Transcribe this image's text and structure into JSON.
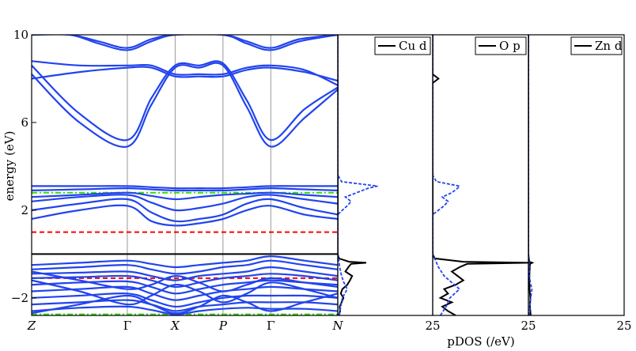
{
  "chart_data": [
    {
      "type": "line",
      "panel": "band-structure",
      "ylabel": "energy (eV)",
      "ylim": [
        -2.8,
        10
      ],
      "yticks": [
        -2,
        2,
        6,
        10
      ],
      "ytick_labels": [
        "−2",
        "2",
        "6",
        "10"
      ],
      "kpoints": [
        "Z",
        "Γ",
        "X",
        "P",
        "Γ",
        "N"
      ],
      "kpoint_positions": [
        0,
        1,
        1.5,
        2,
        2.5,
        3.2
      ],
      "reference_lines": [
        {
          "value": 0,
          "style": "solid",
          "color": "#000000"
        },
        {
          "value": 1.0,
          "style": "dashed",
          "color": "#ff0000"
        },
        {
          "value": -1.1,
          "style": "dashed",
          "color": "#ff0000"
        },
        {
          "value": 2.8,
          "style": "dashdot",
          "color": "#33dd00"
        },
        {
          "value": -2.75,
          "style": "dashdot",
          "color": "#33dd00"
        }
      ],
      "band_color": "#2244ee",
      "bands": [
        {
          "group": "upper",
          "x": [
            0,
            0.5,
            1,
            1.25,
            1.5,
            1.75,
            2,
            2.25,
            2.5,
            2.85,
            3.2
          ],
          "y": [
            8.2,
            6.0,
            4.9,
            6.8,
            8.5,
            8.5,
            8.6,
            6.7,
            4.9,
            6.2,
            7.5
          ]
        },
        {
          "group": "upper",
          "x": [
            0,
            0.5,
            1,
            1.25,
            1.5,
            1.75,
            2,
            2.25,
            2.5,
            2.85,
            3.2
          ],
          "y": [
            8.6,
            6.4,
            5.2,
            7.1,
            8.6,
            8.6,
            8.7,
            7.0,
            5.2,
            6.6,
            7.6
          ]
        },
        {
          "group": "upper",
          "x": [
            0,
            0.5,
            1,
            1.25,
            1.5,
            1.75,
            2,
            2.25,
            2.5,
            2.85,
            3.2
          ],
          "y": [
            8.0,
            8.3,
            8.5,
            8.5,
            8.1,
            8.1,
            8.1,
            8.4,
            8.5,
            8.3,
            7.9
          ]
        },
        {
          "group": "upper",
          "x": [
            0,
            0.5,
            1,
            1.25,
            1.5,
            1.75,
            2,
            2.25,
            2.5,
            2.85,
            3.2
          ],
          "y": [
            8.8,
            8.6,
            8.6,
            8.6,
            8.2,
            8.2,
            8.2,
            8.5,
            8.6,
            8.4,
            7.7
          ]
        },
        {
          "group": "upper",
          "x": [
            0,
            0.4,
            0.7,
            1,
            1.25,
            1.5,
            2,
            2.25,
            2.5,
            2.8,
            3.2
          ],
          "y": [
            10,
            10,
            9.6,
            9.3,
            9.7,
            10,
            10,
            9.6,
            9.3,
            9.7,
            10
          ]
        },
        {
          "group": "upper",
          "x": [
            0,
            0.4,
            0.7,
            1,
            1.25,
            1.5,
            2,
            2.25,
            2.5,
            2.8,
            3.2
          ],
          "y": [
            10,
            10,
            9.7,
            9.4,
            9.8,
            10,
            10,
            9.7,
            9.4,
            9.8,
            10
          ]
        },
        {
          "group": "mid",
          "x": [
            0,
            0.5,
            1,
            1.25,
            1.5,
            1.75,
            2,
            2.25,
            2.5,
            2.85,
            3.2
          ],
          "y": [
            3.1,
            3.1,
            3.1,
            3.05,
            3.0,
            3.0,
            3.0,
            3.05,
            3.1,
            3.1,
            3.1
          ]
        },
        {
          "group": "mid",
          "x": [
            0,
            0.5,
            1,
            1.25,
            1.5,
            1.75,
            2,
            2.25,
            2.5,
            2.85,
            3.2
          ],
          "y": [
            2.9,
            2.95,
            3.0,
            2.95,
            2.9,
            2.9,
            2.9,
            2.95,
            3.0,
            2.95,
            2.9
          ]
        },
        {
          "group": "mid",
          "x": [
            0,
            0.5,
            1,
            1.25,
            1.5,
            1.75,
            2,
            2.25,
            2.5,
            2.85,
            3.2
          ],
          "y": [
            2.6,
            2.7,
            2.8,
            2.65,
            2.5,
            2.6,
            2.7,
            2.75,
            2.8,
            2.7,
            2.6
          ]
        },
        {
          "group": "mid",
          "x": [
            0,
            0.5,
            1,
            1.25,
            1.5,
            1.75,
            2,
            2.25,
            2.5,
            2.85,
            3.2
          ],
          "y": [
            2.4,
            2.6,
            2.7,
            2.35,
            2.0,
            2.1,
            2.3,
            2.6,
            2.7,
            2.5,
            2.3
          ]
        },
        {
          "group": "mid",
          "x": [
            0,
            0.5,
            1,
            1.25,
            1.5,
            1.75,
            2,
            2.25,
            2.5,
            2.85,
            3.2
          ],
          "y": [
            2.0,
            2.3,
            2.5,
            1.9,
            1.5,
            1.6,
            1.8,
            2.3,
            2.5,
            2.1,
            1.8
          ]
        },
        {
          "group": "mid",
          "x": [
            0,
            0.5,
            1,
            1.25,
            1.5,
            1.75,
            2,
            2.25,
            2.5,
            2.85,
            3.2
          ],
          "y": [
            1.6,
            2.0,
            2.2,
            1.5,
            1.3,
            1.4,
            1.6,
            2.0,
            2.2,
            1.8,
            1.6
          ]
        },
        {
          "group": "valence",
          "x": [
            0,
            0.5,
            1,
            1.25,
            1.5,
            1.75,
            2,
            2.25,
            2.5,
            2.85,
            3.2
          ],
          "y": [
            -0.5,
            -0.4,
            -0.3,
            -0.45,
            -0.6,
            -0.5,
            -0.4,
            -0.3,
            -0.1,
            -0.3,
            -0.5
          ]
        },
        {
          "group": "valence",
          "x": [
            0,
            0.5,
            1,
            1.25,
            1.5,
            1.75,
            2,
            2.25,
            2.5,
            2.85,
            3.2
          ],
          "y": [
            -0.7,
            -0.6,
            -0.5,
            -0.7,
            -0.9,
            -0.8,
            -0.6,
            -0.5,
            -0.3,
            -0.5,
            -0.7
          ]
        },
        {
          "group": "valence",
          "x": [
            0,
            0.5,
            1,
            1.25,
            1.5,
            1.75,
            2,
            2.25,
            2.5,
            2.85,
            3.2
          ],
          "y": [
            -0.9,
            -0.85,
            -0.8,
            -1.0,
            -1.2,
            -1.0,
            -0.9,
            -0.8,
            -0.6,
            -0.8,
            -1.0
          ]
        },
        {
          "group": "valence",
          "x": [
            0,
            0.5,
            1,
            1.25,
            1.5,
            1.75,
            2,
            2.25,
            2.5,
            2.85,
            3.2
          ],
          "y": [
            -1.1,
            -1.05,
            -1.0,
            -1.2,
            -1.5,
            -1.3,
            -1.1,
            -1.0,
            -0.9,
            -1.0,
            -1.2
          ]
        },
        {
          "group": "valence",
          "x": [
            0,
            0.5,
            1,
            1.25,
            1.5,
            1.75,
            2,
            2.25,
            2.5,
            2.85,
            3.2
          ],
          "y": [
            -1.4,
            -1.3,
            -1.25,
            -1.5,
            -1.8,
            -1.6,
            -1.4,
            -1.3,
            -1.2,
            -1.3,
            -1.4
          ]
        },
        {
          "group": "valence",
          "x": [
            0,
            0.5,
            1,
            1.25,
            1.5,
            1.75,
            2,
            2.25,
            2.5,
            2.85,
            3.2
          ],
          "y": [
            -1.7,
            -1.6,
            -1.5,
            -1.8,
            -2.1,
            -1.9,
            -1.7,
            -1.6,
            -1.5,
            -1.6,
            -1.7
          ]
        },
        {
          "group": "valence",
          "x": [
            0,
            0.5,
            1,
            1.25,
            1.5,
            1.75,
            2,
            2.25,
            2.5,
            2.85,
            3.2
          ],
          "y": [
            -2.0,
            -1.9,
            -1.8,
            -2.1,
            -2.4,
            -2.2,
            -2.0,
            -1.9,
            -1.9,
            -1.9,
            -2.0
          ]
        },
        {
          "group": "valence",
          "x": [
            0,
            0.5,
            1,
            1.25,
            1.5,
            1.75,
            2,
            2.25,
            2.5,
            2.85,
            3.2
          ],
          "y": [
            -2.3,
            -2.2,
            -2.1,
            -2.3,
            -2.6,
            -2.4,
            -2.3,
            -2.2,
            -2.2,
            -2.2,
            -2.3
          ]
        },
        {
          "group": "valence",
          "x": [
            0,
            0.5,
            1,
            1.25,
            1.5,
            1.75,
            2,
            2.25,
            2.5,
            2.85,
            3.2
          ],
          "y": [
            -2.6,
            -2.45,
            -2.4,
            -2.55,
            -2.75,
            -2.6,
            -2.5,
            -2.45,
            -2.5,
            -2.5,
            -2.6
          ]
        },
        {
          "group": "valence",
          "x": [
            0,
            0.5,
            1,
            1.25,
            1.5,
            1.75,
            2,
            2.25,
            2.5,
            2.85,
            3.2
          ],
          "y": [
            -1.2,
            -1.7,
            -2.3,
            -1.9,
            -1.4,
            -1.7,
            -2.2,
            -1.8,
            -1.3,
            -1.6,
            -2.0
          ]
        },
        {
          "group": "valence",
          "x": [
            0,
            0.5,
            1,
            1.25,
            1.5,
            1.75,
            2,
            2.25,
            2.5,
            2.85,
            3.2
          ],
          "y": [
            -2.7,
            -2.3,
            -1.9,
            -2.3,
            -2.7,
            -2.4,
            -1.9,
            -2.2,
            -2.6,
            -2.2,
            -1.8
          ]
        },
        {
          "group": "valence",
          "x": [
            0,
            0.5,
            1,
            1.25,
            1.5,
            1.75,
            2,
            2.25,
            2.5,
            2.85,
            3.2
          ],
          "y": [
            -0.8,
            -1.2,
            -1.6,
            -1.4,
            -1.0,
            -1.3,
            -1.7,
            -1.4,
            -1.1,
            -1.3,
            -1.5
          ]
        }
      ]
    },
    {
      "type": "line",
      "panel": "pdos-cu-d",
      "legend": "Cu d",
      "legend_position": "top-right",
      "xlim": [
        0,
        25
      ],
      "ylim": [
        -2.8,
        10
      ],
      "xtick_labels": [
        "25"
      ],
      "series": [
        {
          "name": "Cu d",
          "style": "solid",
          "color": "#000000",
          "energy": [
            -2.8,
            -2.6,
            -2.4,
            -2.2,
            -2.0,
            -1.8,
            -1.6,
            -1.4,
            -1.2,
            -1.0,
            -0.8,
            -0.6,
            -0.45,
            -0.4,
            -0.35,
            -0.2,
            0.0,
            10
          ],
          "dos": [
            0.3,
            0.6,
            0.5,
            1.0,
            1.5,
            0.8,
            1.2,
            2.5,
            3.2,
            3.8,
            2.0,
            2.8,
            3.5,
            7.5,
            3.0,
            0.3,
            0,
            0
          ]
        },
        {
          "style": "dashed",
          "color": "#2244ee",
          "energy": [
            -2.8,
            -2.4,
            -2.0,
            -1.6,
            -1.3,
            -1.0,
            -0.6,
            -0.2,
            0.0,
            1.8,
            2.0,
            2.2,
            2.4,
            2.6,
            2.8,
            3.0,
            3.1,
            3.3,
            3.6,
            10
          ],
          "dos": [
            0.4,
            0.8,
            1.2,
            2.5,
            1.6,
            1.0,
            0.5,
            0.2,
            0,
            0,
            1.2,
            2.5,
            3.5,
            2.0,
            5.0,
            8.0,
            10.5,
            1.0,
            0,
            0
          ]
        }
      ]
    },
    {
      "type": "line",
      "panel": "pdos-o-p",
      "legend": "O p",
      "legend_position": "top-right",
      "xlim": [
        0,
        25
      ],
      "ylim": [
        -2.8,
        10
      ],
      "xtick_labels": [
        "25"
      ],
      "series": [
        {
          "name": "O p",
          "style": "solid",
          "color": "#000000",
          "energy": [
            -2.8,
            -2.6,
            -2.4,
            -2.2,
            -2.0,
            -1.8,
            -1.6,
            -1.4,
            -1.2,
            -1.0,
            -0.8,
            -0.6,
            -0.45,
            -0.4,
            -0.35,
            -0.2,
            0.0,
            7.8,
            8.0,
            8.2,
            10
          ],
          "dos": [
            6.0,
            4.0,
            2.5,
            5.0,
            2.0,
            4.0,
            3.0,
            6.0,
            8.0,
            6.5,
            5.0,
            7.0,
            9.0,
            25,
            8.0,
            0.5,
            0,
            0,
            1.5,
            0,
            0
          ]
        },
        {
          "style": "dashed",
          "color": "#2244ee",
          "energy": [
            -2.8,
            -2.4,
            -2.0,
            -1.6,
            -1.3,
            -1.0,
            -0.6,
            -0.2,
            0.0,
            1.8,
            2.0,
            2.2,
            2.4,
            2.6,
            2.8,
            3.0,
            3.1,
            3.3,
            3.6,
            10
          ],
          "dos": [
            2.0,
            3.5,
            4.5,
            7.0,
            5.0,
            3.0,
            1.5,
            0.5,
            0,
            0,
            1.5,
            3.0,
            4.0,
            2.5,
            5.0,
            6.5,
            7.0,
            1.0,
            0,
            0
          ]
        }
      ]
    },
    {
      "type": "line",
      "panel": "pdos-zn-d",
      "legend": "Zn d",
      "legend_position": "top-right",
      "xlim": [
        0,
        25
      ],
      "ylim": [
        -2.8,
        10
      ],
      "xtick_labels": [
        "25"
      ],
      "series": [
        {
          "name": "Zn d",
          "style": "solid",
          "color": "#000000",
          "energy": [
            -2.8,
            -2.4,
            -2.0,
            -1.6,
            -1.2,
            -0.8,
            -0.45,
            -0.4,
            -0.35,
            0.0,
            10
          ],
          "dos": [
            0.6,
            0.4,
            0.5,
            0.3,
            0.2,
            0.3,
            0.4,
            1.0,
            0.2,
            0,
            0
          ]
        },
        {
          "style": "dashed",
          "color": "#2244ee",
          "energy": [
            -2.8,
            -2.4,
            -2.0,
            -1.6,
            -1.3,
            -1.0,
            -0.6,
            0.0,
            10
          ],
          "dos": [
            0.2,
            0.4,
            0.6,
            0.9,
            0.5,
            0.3,
            0.2,
            0,
            0
          ]
        }
      ]
    }
  ],
  "bottom_label": "pDOS (/eV)",
  "first_pdos_zero_label": ""
}
